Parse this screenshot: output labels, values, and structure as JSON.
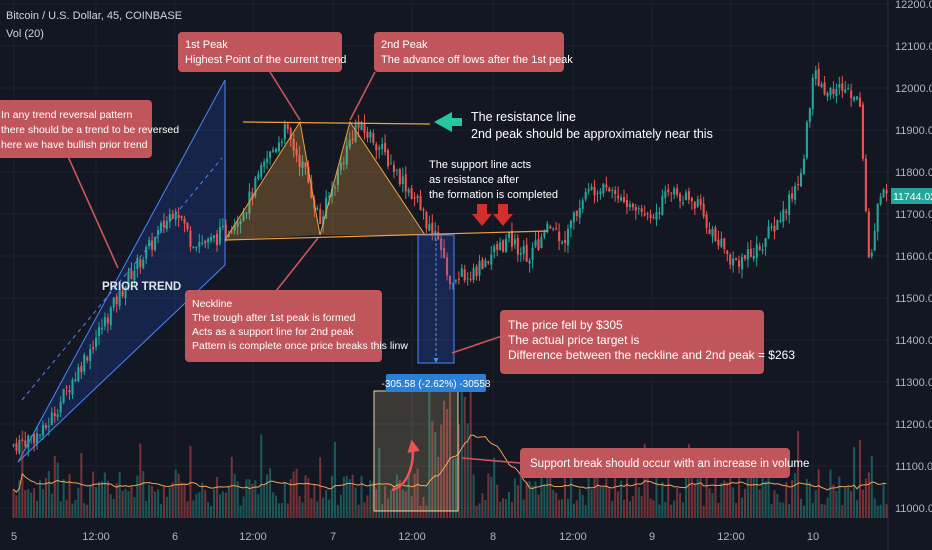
{
  "header": {
    "symbol": "Bitcoin / U.S. Dollar, 45, COINBASE",
    "indicator": "Vol (20)"
  },
  "price_tag": "11744.02",
  "measure_label": "-305.58 (-2.62%) -30558",
  "prior_trend_label": "PRIOR TREND",
  "callouts": {
    "trend": [
      "In any trend reversal pattern",
      "there should be a trend to be reversed",
      "here we have bullish prior trend"
    ],
    "peak1": [
      "1st Peak",
      "Highest Point of the current trend"
    ],
    "peak2": [
      "2nd Peak",
      "The advance off lows after the 1st peak"
    ],
    "resistance": [
      "The resistance line",
      "2nd peak should be approximately near this"
    ],
    "support": [
      "The support line acts",
      "as resistance after",
      "the formation is completed"
    ],
    "neckline": [
      "Neckline",
      "The trough after 1st peak is formed",
      "Acts as a support line for 2nd peak",
      "Pattern is complete once price breaks this linw"
    ],
    "target": [
      "The price fell by $305",
      "The actual price target is",
      "Difference between the neckline and 2nd peak = $263"
    ],
    "volume": [
      "Support break should occur with an increase in volume"
    ]
  },
  "colors": {
    "background": "#131722",
    "up": "#26a69a",
    "down": "#ef5350",
    "callout": "#c0555b",
    "channel": "#2962ff",
    "pattern_line": "#f0a040",
    "arrow_teal": "#26c6a0",
    "volume_ma": "#f5a05a",
    "price_tag": "#26a69a",
    "measure": "#2a7fd6"
  },
  "chart_data": {
    "type": "candlestick",
    "title": "Bitcoin / U.S. Dollar, 45, COINBASE",
    "interval": "45",
    "exchange": "COINBASE",
    "indicator": "Vol (20)",
    "y_range": [
      11000,
      12200
    ],
    "y_ticks": [
      12200,
      12100,
      12000,
      11900,
      11800,
      11700,
      11600,
      11500,
      11400,
      11300,
      11200,
      11100,
      11000
    ],
    "x_labels": [
      "5",
      "12:00",
      "6",
      "12:00",
      "7",
      "12:00",
      "8",
      "12:00",
      "9",
      "12:00",
      "10"
    ],
    "last_price": 11744.02,
    "close_path": [
      [
        0,
        11150
      ],
      [
        10,
        11180
      ],
      [
        22,
        11330
      ],
      [
        33,
        11470
      ],
      [
        40,
        11560
      ],
      [
        48,
        11640
      ],
      [
        55,
        11720
      ],
      [
        60,
        11640
      ],
      [
        66,
        11630
      ],
      [
        72,
        11660
      ],
      [
        79,
        11720
      ],
      [
        86,
        11830
      ],
      [
        92,
        11900
      ],
      [
        99,
        11800
      ],
      [
        104,
        11680
      ],
      [
        110,
        11800
      ],
      [
        116,
        11910
      ],
      [
        122,
        11880
      ],
      [
        128,
        11820
      ],
      [
        136,
        11740
      ],
      [
        143,
        11640
      ],
      [
        148,
        11550
      ],
      [
        156,
        11560
      ],
      [
        163,
        11610
      ],
      [
        168,
        11640
      ],
      [
        175,
        11600
      ],
      [
        182,
        11670
      ],
      [
        187,
        11640
      ],
      [
        193,
        11740
      ],
      [
        200,
        11780
      ],
      [
        208,
        11720
      ],
      [
        216,
        11700
      ],
      [
        224,
        11760
      ],
      [
        232,
        11720
      ],
      [
        238,
        11640
      ],
      [
        244,
        11590
      ],
      [
        250,
        11600
      ],
      [
        256,
        11650
      ],
      [
        261,
        11700
      ],
      [
        267,
        11790
      ],
      [
        271,
        12030
      ],
      [
        276,
        11990
      ],
      [
        281,
        12000
      ],
      [
        287,
        11970
      ],
      [
        290,
        11580
      ],
      [
        293,
        11720
      ],
      [
        296,
        11760
      ]
    ],
    "double_top": {
      "peak1": 11920,
      "peak2": 11920,
      "neckline": 11660,
      "resistance_line": 11920
    },
    "price_drop": -305.58,
    "price_drop_pct": -2.62,
    "target_difference": 263
  }
}
